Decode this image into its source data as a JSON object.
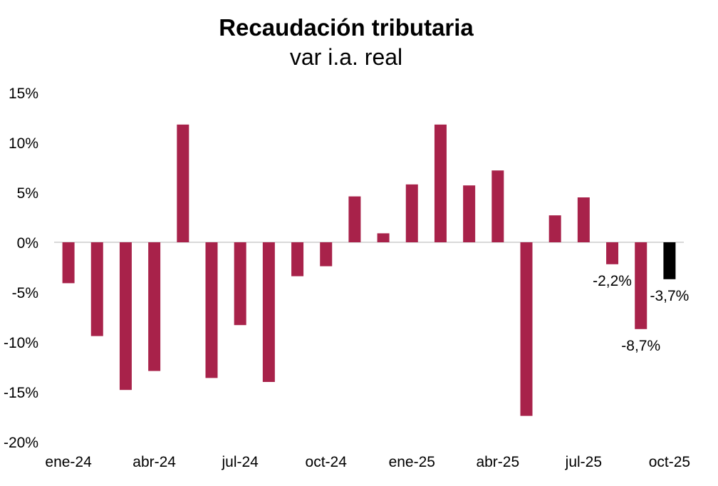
{
  "chart_data": {
    "type": "bar",
    "title": "Recaudación tributaria",
    "subtitle": "var i.a. real",
    "categories": [
      "ene-24",
      "feb-24",
      "mar-24",
      "abr-24",
      "may-24",
      "jun-24",
      "jul-24",
      "ago-24",
      "sep-24",
      "oct-24",
      "nov-24",
      "dic-24",
      "ene-25",
      "feb-25",
      "mar-25",
      "abr-25",
      "may-25",
      "jun-25",
      "jul-25",
      "ago-25",
      "sep-25",
      "oct-25"
    ],
    "x_tick_labels": [
      "ene-24",
      "abr-24",
      "jul-24",
      "oct-24",
      "ene-25",
      "abr-25",
      "jul-25",
      "oct-25"
    ],
    "values": [
      -4.1,
      -9.4,
      -14.8,
      -12.9,
      11.8,
      -13.6,
      -8.3,
      -14.0,
      -3.4,
      -2.4,
      4.6,
      0.9,
      5.8,
      11.8,
      5.7,
      7.2,
      -17.4,
      2.7,
      4.5,
      -2.2,
      -8.7,
      -3.7
    ],
    "data_labels": [
      {
        "category": "ago-25",
        "text": "-2,2%"
      },
      {
        "category": "sep-25",
        "text": "-8,7%"
      },
      {
        "category": "oct-25",
        "text": "-3,7%"
      }
    ],
    "y_ticks": [
      15,
      10,
      5,
      0,
      -5,
      -10,
      -15,
      -20
    ],
    "y_tick_labels": [
      "15%",
      "10%",
      "5%",
      "0%",
      "-5%",
      "-10%",
      "-15%",
      "-20%"
    ],
    "ylim": [
      -20,
      15
    ],
    "grid": false,
    "colors": {
      "bar": "#A8224A",
      "highlight": "#000000",
      "zero_line": "#d9d9d9",
      "text": "#000000"
    },
    "highlight_category": "oct-25"
  }
}
